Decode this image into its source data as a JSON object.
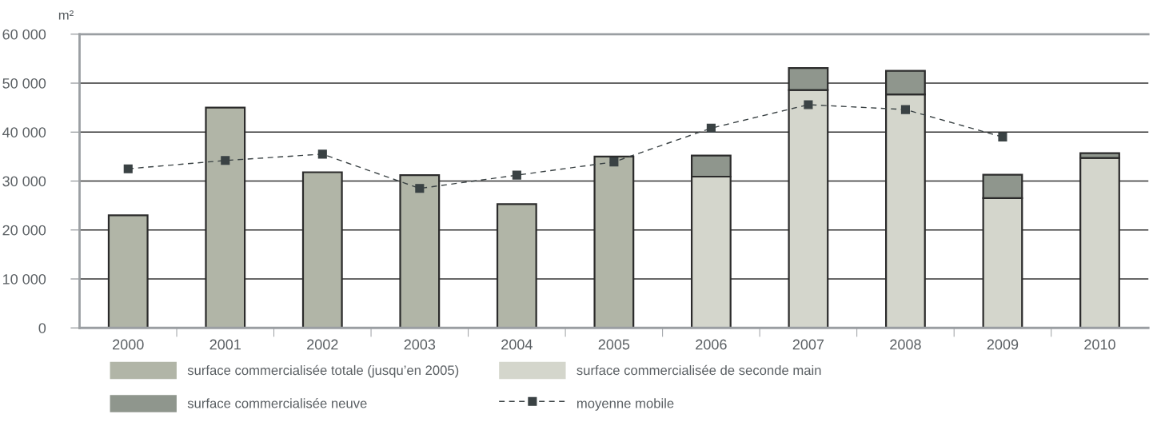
{
  "chart_data": {
    "type": "bar",
    "stacked": true,
    "ylabel": "m²",
    "categories": [
      "2000",
      "2001",
      "2002",
      "2003",
      "2004",
      "2005",
      "2006",
      "2007",
      "2008",
      "2009",
      "2010"
    ],
    "series": [
      {
        "name": "surface commercialisée totale (jusqu’en 2005)",
        "color": "#b1b5a7",
        "values": [
          23000,
          45000,
          31800,
          31200,
          25300,
          35000,
          null,
          null,
          null,
          null,
          null
        ]
      },
      {
        "name": "surface commercialisée de seconde main",
        "color": "#d4d6cc",
        "values": [
          null,
          null,
          null,
          null,
          null,
          null,
          30900,
          48600,
          47700,
          26500,
          34700
        ]
      },
      {
        "name": "surface commercialisée neuve",
        "color": "#8f968d",
        "values": [
          null,
          null,
          null,
          null,
          null,
          null,
          4300,
          4500,
          4800,
          4800,
          1000
        ]
      },
      {
        "name": "moyenne mobile",
        "type": "line",
        "color": "#3a4244",
        "values": [
          32500,
          34200,
          35500,
          28500,
          31200,
          33900,
          40800,
          45600,
          44600,
          39000,
          null
        ]
      }
    ],
    "ylim": [
      0,
      60000
    ],
    "yticks": [
      {
        "value": 0,
        "label": "0"
      },
      {
        "value": 10000,
        "label": "10 000"
      },
      {
        "value": 20000,
        "label": "20 000"
      },
      {
        "value": 30000,
        "label": "30 000"
      },
      {
        "value": 40000,
        "label": "40 000"
      },
      {
        "value": 50000,
        "label": "50 000"
      },
      {
        "value": 60000,
        "label": "60 000"
      }
    ],
    "grid": "y",
    "legend": "bottom",
    "marker": "square",
    "line_style": "dashed"
  }
}
